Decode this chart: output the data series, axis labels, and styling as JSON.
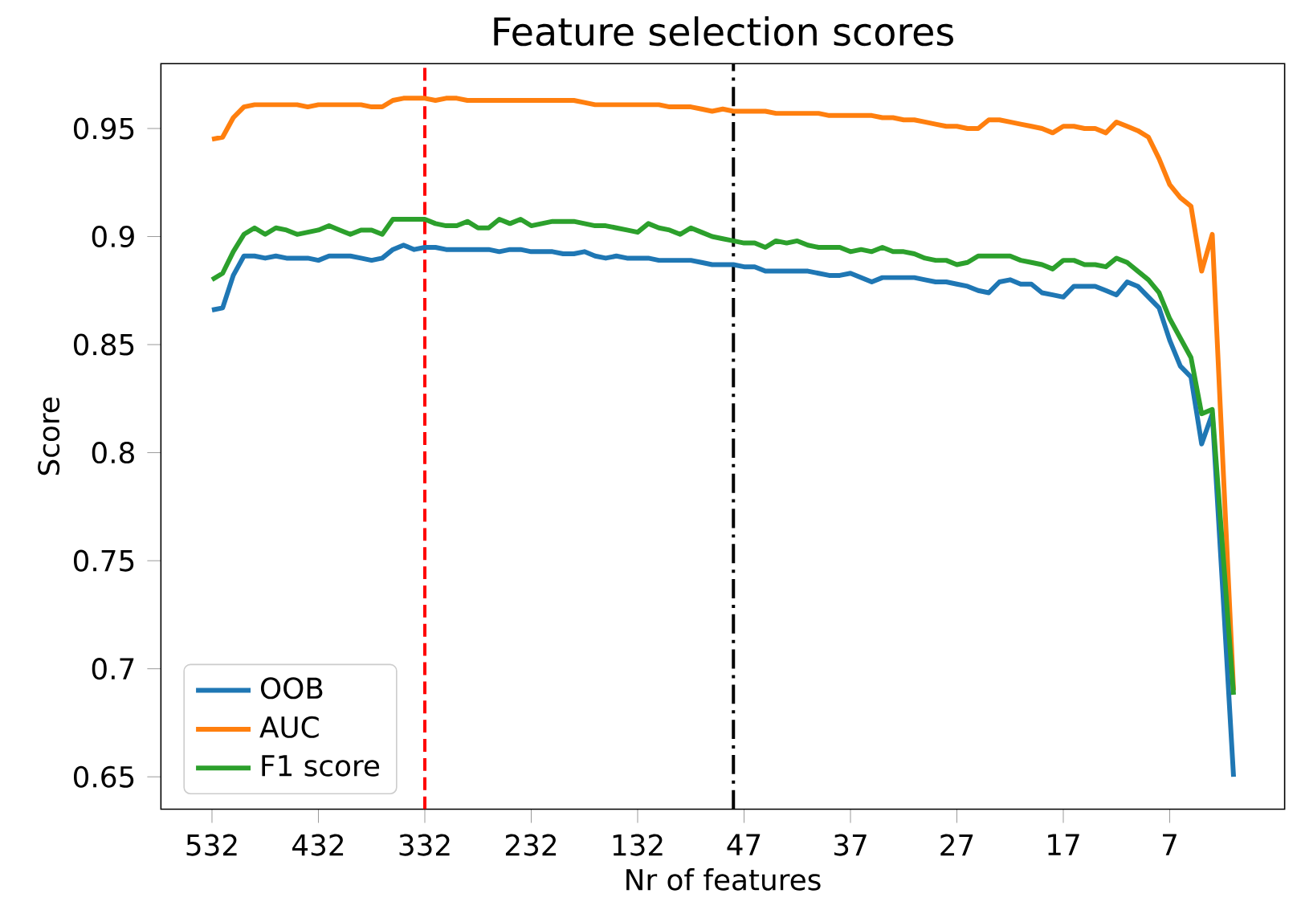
{
  "chart_data": {
    "type": "line",
    "title": "Feature selection scores",
    "xlabel": "Nr of features",
    "ylabel": "Score",
    "categories": [
      "532",
      null,
      null,
      null,
      null,
      null,
      null,
      null,
      null,
      null,
      "432",
      null,
      null,
      null,
      null,
      null,
      null,
      null,
      null,
      null,
      "332",
      null,
      null,
      null,
      null,
      null,
      null,
      null,
      null,
      null,
      "232",
      null,
      null,
      null,
      null,
      null,
      null,
      null,
      null,
      null,
      "132",
      null,
      null,
      null,
      null,
      null,
      null,
      null,
      null,
      null,
      "47",
      null,
      null,
      null,
      null,
      null,
      null,
      null,
      null,
      null,
      "37",
      null,
      null,
      null,
      null,
      null,
      null,
      null,
      null,
      null,
      "27",
      null,
      null,
      null,
      null,
      null,
      null,
      null,
      null,
      null,
      "17",
      null,
      null,
      null,
      null,
      null,
      null,
      null,
      null,
      null,
      "7",
      null,
      null,
      null,
      null,
      null,
      null
    ],
    "ylim": [
      0.635,
      0.98
    ],
    "yticks": [
      0.65,
      0.7,
      0.75,
      0.8,
      0.85,
      0.9,
      0.95
    ],
    "legend": "bottom left",
    "series": [
      {
        "name": "OOB",
        "color": "#1f77b4",
        "values": [
          0.866,
          0.867,
          0.882,
          0.891,
          0.891,
          0.89,
          0.891,
          0.89,
          0.89,
          0.89,
          0.889,
          0.891,
          0.891,
          0.891,
          0.89,
          0.889,
          0.89,
          0.894,
          0.896,
          0.894,
          0.895,
          0.895,
          0.894,
          0.894,
          0.894,
          0.894,
          0.894,
          0.893,
          0.894,
          0.894,
          0.893,
          0.893,
          0.893,
          0.892,
          0.892,
          0.893,
          0.891,
          0.89,
          0.891,
          0.89,
          0.89,
          0.89,
          0.889,
          0.889,
          0.889,
          0.889,
          0.888,
          0.887,
          0.887,
          0.887,
          0.886,
          0.886,
          0.884,
          0.884,
          0.884,
          0.884,
          0.884,
          0.883,
          0.882,
          0.882,
          0.883,
          0.881,
          0.879,
          0.881,
          0.881,
          0.881,
          0.881,
          0.88,
          0.879,
          0.879,
          0.878,
          0.877,
          0.875,
          0.874,
          0.879,
          0.88,
          0.878,
          0.878,
          0.874,
          0.873,
          0.872,
          0.877,
          0.877,
          0.877,
          0.875,
          0.873,
          0.879,
          0.877,
          0.872,
          0.867,
          0.852,
          0.84,
          0.835,
          0.804,
          0.818,
          0.735,
          0.65
        ]
      },
      {
        "name": "AUC",
        "color": "#ff7f0e",
        "values": [
          0.945,
          0.946,
          0.955,
          0.96,
          0.961,
          0.961,
          0.961,
          0.961,
          0.961,
          0.96,
          0.961,
          0.961,
          0.961,
          0.961,
          0.961,
          0.96,
          0.96,
          0.963,
          0.964,
          0.964,
          0.964,
          0.963,
          0.964,
          0.964,
          0.963,
          0.963,
          0.963,
          0.963,
          0.963,
          0.963,
          0.963,
          0.963,
          0.963,
          0.963,
          0.963,
          0.962,
          0.961,
          0.961,
          0.961,
          0.961,
          0.961,
          0.961,
          0.961,
          0.96,
          0.96,
          0.96,
          0.959,
          0.958,
          0.959,
          0.958,
          0.958,
          0.958,
          0.958,
          0.957,
          0.957,
          0.957,
          0.957,
          0.957,
          0.956,
          0.956,
          0.956,
          0.956,
          0.956,
          0.955,
          0.955,
          0.954,
          0.954,
          0.953,
          0.952,
          0.951,
          0.951,
          0.95,
          0.95,
          0.954,
          0.954,
          0.953,
          0.952,
          0.951,
          0.95,
          0.948,
          0.951,
          0.951,
          0.95,
          0.95,
          0.948,
          0.953,
          0.951,
          0.949,
          0.946,
          0.936,
          0.924,
          0.918,
          0.914,
          0.884,
          0.901,
          0.795,
          0.69
        ]
      },
      {
        "name": "F1 score",
        "color": "#2ca02c",
        "values": [
          0.88,
          0.883,
          0.893,
          0.901,
          0.904,
          0.901,
          0.904,
          0.903,
          0.901,
          0.902,
          0.903,
          0.905,
          0.903,
          0.901,
          0.903,
          0.903,
          0.901,
          0.908,
          0.908,
          0.908,
          0.908,
          0.906,
          0.905,
          0.905,
          0.907,
          0.904,
          0.904,
          0.908,
          0.906,
          0.908,
          0.905,
          0.906,
          0.907,
          0.907,
          0.907,
          0.906,
          0.905,
          0.905,
          0.904,
          0.903,
          0.902,
          0.906,
          0.904,
          0.903,
          0.901,
          0.904,
          0.902,
          0.9,
          0.899,
          0.898,
          0.897,
          0.897,
          0.895,
          0.898,
          0.897,
          0.898,
          0.896,
          0.895,
          0.895,
          0.895,
          0.893,
          0.894,
          0.893,
          0.895,
          0.893,
          0.893,
          0.892,
          0.89,
          0.889,
          0.889,
          0.887,
          0.888,
          0.891,
          0.891,
          0.891,
          0.891,
          0.889,
          0.888,
          0.887,
          0.885,
          0.889,
          0.889,
          0.887,
          0.887,
          0.886,
          0.89,
          0.888,
          0.884,
          0.88,
          0.874,
          0.862,
          0.853,
          0.844,
          0.818,
          0.82,
          0.754,
          0.688
        ]
      }
    ],
    "ref_lines": [
      {
        "axis": "x",
        "value": "332",
        "color": "#ff0000",
        "line_style": "dashed"
      }
    ]
  }
}
